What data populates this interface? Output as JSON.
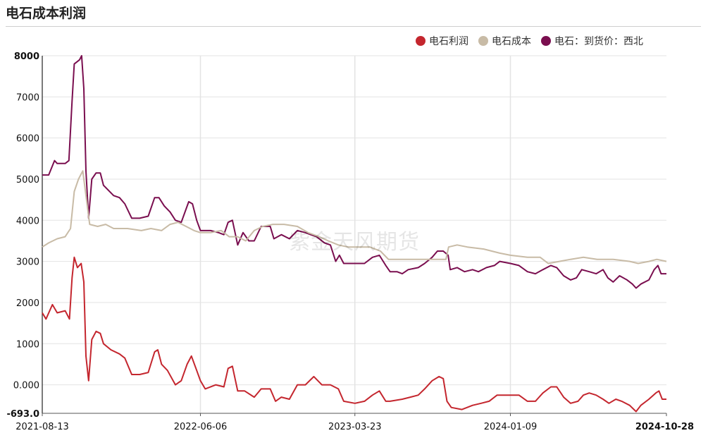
{
  "header": {
    "title": "电石成本利润"
  },
  "watermark": "紫金天风期货",
  "legend": [
    {
      "label": "电石利润",
      "color": "#c4262e"
    },
    {
      "label": "电石成本",
      "color": "#c8bba6"
    },
    {
      "label": "电石：到货价：西北",
      "color": "#7a0e4f"
    }
  ],
  "chart_data": {
    "type": "line",
    "title": "电石成本利润",
    "y_ticks": [
      "8000",
      "7000",
      "6000",
      "5000",
      "4000",
      "3000",
      "2000",
      "1000",
      "0.000",
      "-693.0"
    ],
    "ylim": [
      -693,
      8000
    ],
    "x_ticks": [
      "2021-08-13",
      "2022-06-06",
      "2023-03-23",
      "2024-01-09",
      "2024-10-28"
    ],
    "xlim": [
      "2021-08-13",
      "2024-10-28"
    ],
    "grid": true,
    "legend_position": "top-right",
    "series": [
      {
        "name": "电石：到货价：西北",
        "color": "#7a0e4f",
        "points": [
          [
            "2021-08-13",
            5100
          ],
          [
            "2021-08-25",
            5100
          ],
          [
            "2021-09-05",
            5450
          ],
          [
            "2021-09-10",
            5380
          ],
          [
            "2021-09-25",
            5380
          ],
          [
            "2021-10-02",
            5450
          ],
          [
            "2021-10-08",
            6900
          ],
          [
            "2021-10-12",
            7800
          ],
          [
            "2021-10-22",
            7900
          ],
          [
            "2021-10-26",
            8000
          ],
          [
            "2021-10-30",
            7200
          ],
          [
            "2021-11-03",
            5200
          ],
          [
            "2021-11-08",
            4050
          ],
          [
            "2021-11-14",
            5000
          ],
          [
            "2021-11-22",
            5150
          ],
          [
            "2021-11-30",
            5150
          ],
          [
            "2021-12-06",
            4850
          ],
          [
            "2021-12-25",
            4600
          ],
          [
            "2022-01-05",
            4550
          ],
          [
            "2022-01-15",
            4400
          ],
          [
            "2022-01-28",
            4050
          ],
          [
            "2022-02-12",
            4050
          ],
          [
            "2022-02-28",
            4100
          ],
          [
            "2022-03-12",
            4550
          ],
          [
            "2022-03-20",
            4550
          ],
          [
            "2022-03-30",
            4350
          ],
          [
            "2022-04-10",
            4200
          ],
          [
            "2022-04-20",
            4000
          ],
          [
            "2022-05-01",
            3950
          ],
          [
            "2022-05-15",
            4450
          ],
          [
            "2022-05-22",
            4400
          ],
          [
            "2022-05-30",
            4000
          ],
          [
            "2022-06-06",
            3750
          ],
          [
            "2022-06-25",
            3750
          ],
          [
            "2022-07-10",
            3700
          ],
          [
            "2022-07-20",
            3650
          ],
          [
            "2022-07-28",
            3950
          ],
          [
            "2022-08-05",
            4000
          ],
          [
            "2022-08-15",
            3400
          ],
          [
            "2022-08-25",
            3700
          ],
          [
            "2022-09-05",
            3500
          ],
          [
            "2022-09-15",
            3500
          ],
          [
            "2022-09-28",
            3850
          ],
          [
            "2022-10-15",
            3850
          ],
          [
            "2022-10-22",
            3550
          ],
          [
            "2022-11-05",
            3650
          ],
          [
            "2022-11-20",
            3550
          ],
          [
            "2022-12-05",
            3750
          ],
          [
            "2022-12-20",
            3700
          ],
          [
            "2022-12-30",
            3650
          ],
          [
            "2023-01-10",
            3600
          ],
          [
            "2023-01-25",
            3450
          ],
          [
            "2023-02-05",
            3400
          ],
          [
            "2023-02-15",
            3000
          ],
          [
            "2023-02-22",
            3150
          ],
          [
            "2023-03-02",
            2950
          ],
          [
            "2023-03-23",
            2950
          ],
          [
            "2023-04-10",
            2950
          ],
          [
            "2023-04-25",
            3100
          ],
          [
            "2023-05-08",
            3150
          ],
          [
            "2023-05-20",
            2900
          ],
          [
            "2023-05-28",
            2750
          ],
          [
            "2023-06-10",
            2750
          ],
          [
            "2023-06-20",
            2700
          ],
          [
            "2023-07-01",
            2800
          ],
          [
            "2023-07-20",
            2850
          ],
          [
            "2023-08-01",
            2950
          ],
          [
            "2023-08-15",
            3100
          ],
          [
            "2023-08-25",
            3250
          ],
          [
            "2023-09-05",
            3250
          ],
          [
            "2023-09-14",
            3150
          ],
          [
            "2023-09-18",
            2800
          ],
          [
            "2023-10-01",
            2850
          ],
          [
            "2023-10-15",
            2750
          ],
          [
            "2023-10-30",
            2800
          ],
          [
            "2023-11-10",
            2750
          ],
          [
            "2023-11-25",
            2850
          ],
          [
            "2023-12-10",
            2900
          ],
          [
            "2023-12-20",
            3000
          ],
          [
            "2024-01-09",
            2950
          ],
          [
            "2024-01-25",
            2900
          ],
          [
            "2024-02-10",
            2750
          ],
          [
            "2024-02-25",
            2700
          ],
          [
            "2024-03-10",
            2800
          ],
          [
            "2024-03-25",
            2900
          ],
          [
            "2024-04-05",
            2850
          ],
          [
            "2024-04-18",
            2650
          ],
          [
            "2024-05-01",
            2550
          ],
          [
            "2024-05-12",
            2600
          ],
          [
            "2024-05-22",
            2800
          ],
          [
            "2024-06-05",
            2750
          ],
          [
            "2024-06-18",
            2700
          ],
          [
            "2024-07-01",
            2800
          ],
          [
            "2024-07-10",
            2600
          ],
          [
            "2024-07-20",
            2500
          ],
          [
            "2024-08-01",
            2650
          ],
          [
            "2024-08-15",
            2550
          ],
          [
            "2024-08-25",
            2450
          ],
          [
            "2024-09-01",
            2350
          ],
          [
            "2024-09-10",
            2450
          ],
          [
            "2024-09-25",
            2550
          ],
          [
            "2024-10-05",
            2800
          ],
          [
            "2024-10-12",
            2900
          ],
          [
            "2024-10-18",
            2700
          ],
          [
            "2024-10-28",
            2700
          ]
        ]
      },
      {
        "name": "电石成本",
        "color": "#c8bba6",
        "points": [
          [
            "2021-08-13",
            3350
          ],
          [
            "2021-08-25",
            3450
          ],
          [
            "2021-09-10",
            3550
          ],
          [
            "2021-09-25",
            3600
          ],
          [
            "2021-10-05",
            3800
          ],
          [
            "2021-10-12",
            4700
          ],
          [
            "2021-10-20",
            5000
          ],
          [
            "2021-10-28",
            5200
          ],
          [
            "2021-11-03",
            4600
          ],
          [
            "2021-11-10",
            3900
          ],
          [
            "2021-11-25",
            3850
          ],
          [
            "2021-12-10",
            3900
          ],
          [
            "2021-12-25",
            3800
          ],
          [
            "2022-01-20",
            3800
          ],
          [
            "2022-02-15",
            3750
          ],
          [
            "2022-03-05",
            3800
          ],
          [
            "2022-03-25",
            3750
          ],
          [
            "2022-04-10",
            3900
          ],
          [
            "2022-04-25",
            3950
          ],
          [
            "2022-05-10",
            3850
          ],
          [
            "2022-05-25",
            3750
          ],
          [
            "2022-06-06",
            3700
          ],
          [
            "2022-06-25",
            3700
          ],
          [
            "2022-07-15",
            3750
          ],
          [
            "2022-07-30",
            3600
          ],
          [
            "2022-08-15",
            3600
          ],
          [
            "2022-08-30",
            3500
          ],
          [
            "2022-09-15",
            3750
          ],
          [
            "2022-10-01",
            3850
          ],
          [
            "2022-10-20",
            3900
          ],
          [
            "2022-11-10",
            3900
          ],
          [
            "2022-12-05",
            3850
          ],
          [
            "2022-12-25",
            3700
          ],
          [
            "2023-01-15",
            3600
          ],
          [
            "2023-02-01",
            3500
          ],
          [
            "2023-02-20",
            3400
          ],
          [
            "2023-03-10",
            3350
          ],
          [
            "2023-03-23",
            3350
          ],
          [
            "2023-04-20",
            3350
          ],
          [
            "2023-05-10",
            3250
          ],
          [
            "2023-05-25",
            3050
          ],
          [
            "2023-06-20",
            3050
          ],
          [
            "2023-07-20",
            3050
          ],
          [
            "2023-08-20",
            3050
          ],
          [
            "2023-09-10",
            3050
          ],
          [
            "2023-09-15",
            3350
          ],
          [
            "2023-10-01",
            3400
          ],
          [
            "2023-10-20",
            3350
          ],
          [
            "2023-11-20",
            3300
          ],
          [
            "2023-12-20",
            3200
          ],
          [
            "2024-01-09",
            3150
          ],
          [
            "2024-02-10",
            3100
          ],
          [
            "2024-03-05",
            3100
          ],
          [
            "2024-03-20",
            2950
          ],
          [
            "2024-04-10",
            3000
          ],
          [
            "2024-05-01",
            3050
          ],
          [
            "2024-05-25",
            3100
          ],
          [
            "2024-06-20",
            3050
          ],
          [
            "2024-07-20",
            3050
          ],
          [
            "2024-08-20",
            3000
          ],
          [
            "2024-09-05",
            2950
          ],
          [
            "2024-09-25",
            3000
          ],
          [
            "2024-10-10",
            3050
          ],
          [
            "2024-10-28",
            3000
          ]
        ]
      },
      {
        "name": "电石利润",
        "color": "#c4262e",
        "points": [
          [
            "2021-08-13",
            1750
          ],
          [
            "2021-08-20",
            1600
          ],
          [
            "2021-09-01",
            1950
          ],
          [
            "2021-09-10",
            1750
          ],
          [
            "2021-09-25",
            1800
          ],
          [
            "2021-10-03",
            1600
          ],
          [
            "2021-10-08",
            2600
          ],
          [
            "2021-10-12",
            3100
          ],
          [
            "2021-10-18",
            2850
          ],
          [
            "2021-10-25",
            2950
          ],
          [
            "2021-10-30",
            2500
          ],
          [
            "2021-11-03",
            700
          ],
          [
            "2021-11-08",
            100
          ],
          [
            "2021-11-14",
            1100
          ],
          [
            "2021-11-22",
            1300
          ],
          [
            "2021-11-30",
            1250
          ],
          [
            "2021-12-06",
            1000
          ],
          [
            "2021-12-20",
            850
          ],
          [
            "2022-01-05",
            750
          ],
          [
            "2022-01-15",
            650
          ],
          [
            "2022-01-28",
            250
          ],
          [
            "2022-02-12",
            250
          ],
          [
            "2022-02-28",
            300
          ],
          [
            "2022-03-12",
            800
          ],
          [
            "2022-03-18",
            850
          ],
          [
            "2022-03-25",
            500
          ],
          [
            "2022-04-05",
            350
          ],
          [
            "2022-04-20",
            0
          ],
          [
            "2022-05-01",
            100
          ],
          [
            "2022-05-12",
            500
          ],
          [
            "2022-05-20",
            700
          ],
          [
            "2022-05-30",
            350
          ],
          [
            "2022-06-06",
            100
          ],
          [
            "2022-06-15",
            -100
          ],
          [
            "2022-07-05",
            0
          ],
          [
            "2022-07-20",
            -50
          ],
          [
            "2022-07-28",
            400
          ],
          [
            "2022-08-05",
            450
          ],
          [
            "2022-08-15",
            -150
          ],
          [
            "2022-08-28",
            -150
          ],
          [
            "2022-09-15",
            -300
          ],
          [
            "2022-09-28",
            -100
          ],
          [
            "2022-10-15",
            -100
          ],
          [
            "2022-10-25",
            -400
          ],
          [
            "2022-11-05",
            -300
          ],
          [
            "2022-11-20",
            -350
          ],
          [
            "2022-12-05",
            0
          ],
          [
            "2022-12-20",
            0
          ],
          [
            "2023-01-05",
            200
          ],
          [
            "2023-01-20",
            0
          ],
          [
            "2023-02-05",
            0
          ],
          [
            "2023-02-20",
            -100
          ],
          [
            "2023-03-02",
            -400
          ],
          [
            "2023-03-23",
            -450
          ],
          [
            "2023-04-10",
            -400
          ],
          [
            "2023-04-25",
            -250
          ],
          [
            "2023-05-08",
            -150
          ],
          [
            "2023-05-20",
            -400
          ],
          [
            "2023-05-28",
            -400
          ],
          [
            "2023-06-20",
            -350
          ],
          [
            "2023-07-05",
            -300
          ],
          [
            "2023-07-20",
            -250
          ],
          [
            "2023-08-01",
            -100
          ],
          [
            "2023-08-15",
            100
          ],
          [
            "2023-08-28",
            200
          ],
          [
            "2023-09-05",
            150
          ],
          [
            "2023-09-12",
            -400
          ],
          [
            "2023-09-20",
            -550
          ],
          [
            "2023-10-10",
            -600
          ],
          [
            "2023-10-30",
            -500
          ],
          [
            "2023-11-15",
            -450
          ],
          [
            "2023-11-30",
            -400
          ],
          [
            "2023-12-15",
            -250
          ],
          [
            "2024-01-09",
            -250
          ],
          [
            "2024-01-25",
            -250
          ],
          [
            "2024-02-10",
            -400
          ],
          [
            "2024-02-25",
            -400
          ],
          [
            "2024-03-10",
            -200
          ],
          [
            "2024-03-25",
            -50
          ],
          [
            "2024-04-05",
            -50
          ],
          [
            "2024-04-18",
            -300
          ],
          [
            "2024-05-01",
            -450
          ],
          [
            "2024-05-15",
            -400
          ],
          [
            "2024-05-25",
            -250
          ],
          [
            "2024-06-05",
            -200
          ],
          [
            "2024-06-18",
            -250
          ],
          [
            "2024-07-01",
            -350
          ],
          [
            "2024-07-12",
            -450
          ],
          [
            "2024-07-25",
            -350
          ],
          [
            "2024-08-05",
            -400
          ],
          [
            "2024-08-20",
            -500
          ],
          [
            "2024-09-01",
            -650
          ],
          [
            "2024-09-10",
            -500
          ],
          [
            "2024-09-25",
            -350
          ],
          [
            "2024-10-08",
            -200
          ],
          [
            "2024-10-14",
            -150
          ],
          [
            "2024-10-20",
            -350
          ],
          [
            "2024-10-28",
            -350
          ]
        ]
      }
    ]
  }
}
